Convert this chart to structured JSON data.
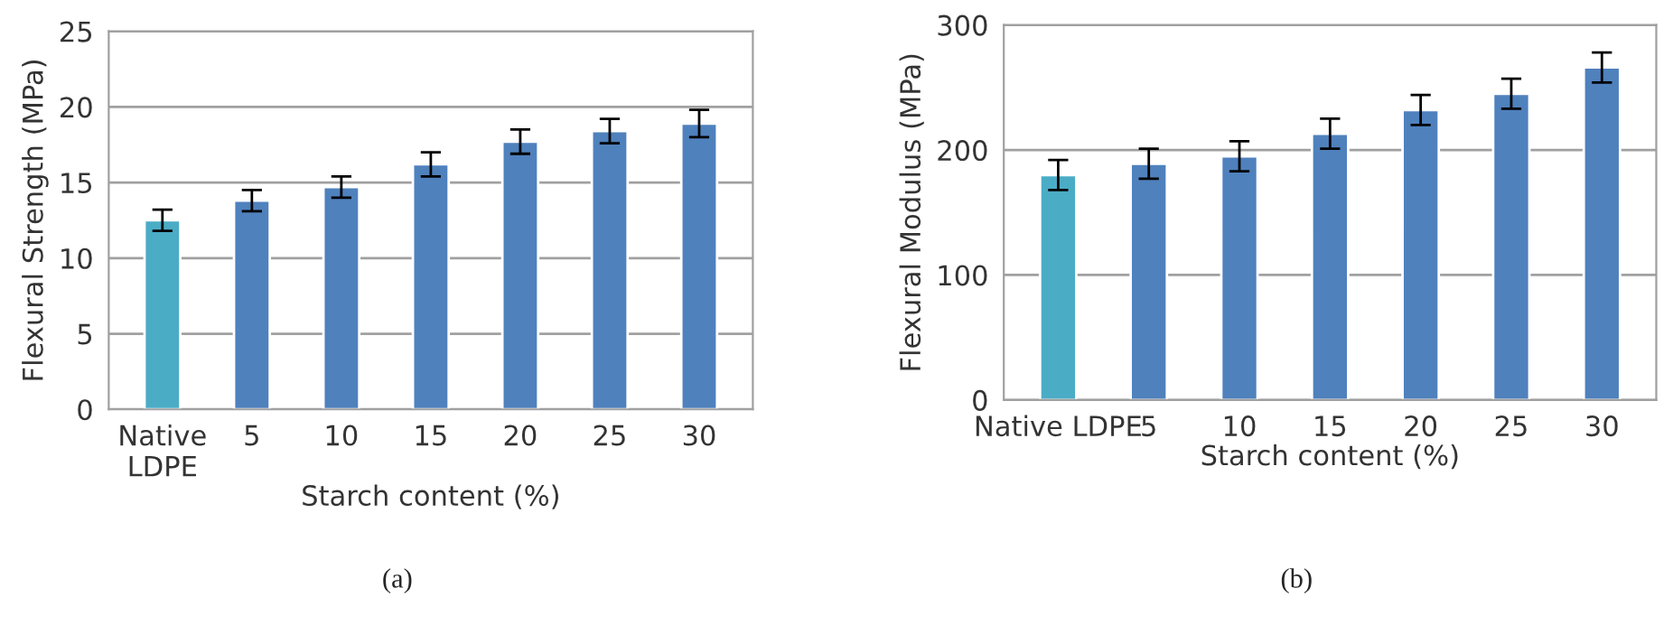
{
  "chart_data": [
    {
      "type": "bar",
      "categories": [
        "Native\nLDPE",
        "5",
        "10",
        "15",
        "20",
        "25",
        "30"
      ],
      "xlabel": "Starch content (%)",
      "ylabel": "Flexural Strength (MPa)",
      "values": [
        12.5,
        13.8,
        14.7,
        16.2,
        17.7,
        18.4,
        18.9
      ],
      "errors": [
        0.7,
        0.7,
        0.7,
        0.8,
        0.8,
        0.8,
        0.9
      ],
      "colors": [
        "#4bacc6",
        "#4f81bd",
        "#4f81bd",
        "#4f81bd",
        "#4f81bd",
        "#4f81bd",
        "#4f81bd"
      ],
      "ylim": [
        0,
        25
      ],
      "yticks": [
        0,
        5,
        10,
        15,
        20,
        25
      ],
      "grid": "y",
      "annotations": [
        "(a)"
      ]
    },
    {
      "type": "bar",
      "categories": [
        "Native LDPE",
        "5",
        "10",
        "15",
        "20",
        "25",
        "30"
      ],
      "xlabel": "Starch content (%)",
      "ylabel": "Flexural Modulus (MPa)",
      "values": [
        180,
        189,
        195,
        213,
        232,
        245,
        266
      ],
      "errors": [
        12,
        12,
        12,
        12,
        12,
        12,
        12
      ],
      "colors": [
        "#4bacc6",
        "#4f81bd",
        "#4f81bd",
        "#4f81bd",
        "#4f81bd",
        "#4f81bd",
        "#4f81bd"
      ],
      "ylim": [
        0,
        300
      ],
      "yticks": [
        0,
        100,
        200,
        300
      ],
      "grid": "y",
      "annotations": [
        "(b)"
      ]
    }
  ]
}
